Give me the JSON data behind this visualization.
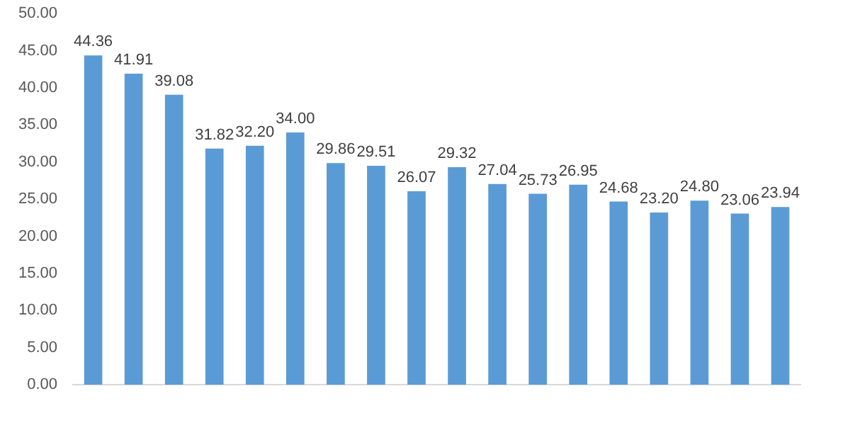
{
  "chart_data": {
    "type": "bar",
    "categories": [
      null,
      null,
      null,
      null,
      null,
      null,
      null,
      null,
      null,
      null,
      null,
      null,
      null,
      null,
      null,
      null,
      null,
      null
    ],
    "values": [
      44.36,
      41.91,
      39.08,
      31.82,
      32.2,
      34.0,
      29.86,
      29.51,
      26.07,
      29.32,
      27.04,
      25.73,
      26.95,
      24.68,
      23.2,
      24.8,
      23.06,
      23.94
    ],
    "value_labels": [
      "44.36",
      "41.91",
      "39.08",
      "31.82",
      "32.20",
      "34.00",
      "29.86",
      "29.51",
      "26.07",
      "29.32",
      "27.04",
      "25.73",
      "26.95",
      "24.68",
      "23.20",
      "24.80",
      "23.06",
      "23.94"
    ],
    "color": "#5b9bd5",
    "ylim": [
      0,
      50
    ],
    "yticks": [
      {
        "value": 0,
        "label": "0.00"
      },
      {
        "value": 5,
        "label": "5.00"
      },
      {
        "value": 10,
        "label": "10.00"
      },
      {
        "value": 15,
        "label": "15.00"
      },
      {
        "value": 20,
        "label": "20.00"
      },
      {
        "value": 25,
        "label": "25.00"
      },
      {
        "value": 30,
        "label": "30.00"
      },
      {
        "value": 35,
        "label": "35.00"
      },
      {
        "value": 40,
        "label": "40.00"
      },
      {
        "value": 45,
        "label": "45.00"
      },
      {
        "value": 50,
        "label": "50.00"
      }
    ]
  }
}
